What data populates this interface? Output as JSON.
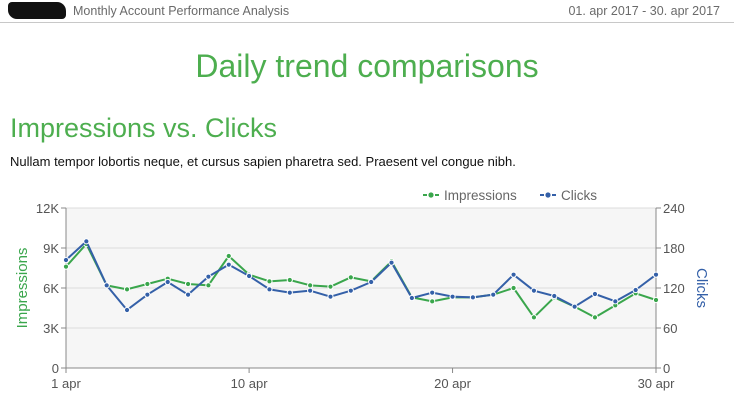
{
  "header": {
    "title": "Monthly Account Performance Analysis",
    "date_range": "01. apr 2017 - 30. apr 2017"
  },
  "page_title": "Daily trend comparisons",
  "section": {
    "title": "Impressions vs. Clicks",
    "description": "Nullam tempor lobortis neque, et cursus sapien pharetra sed. Praesent vel congue nibh."
  },
  "colors": {
    "impressions": "#3aa64c",
    "clicks": "#3460a8",
    "plot_bg": "#f6f6f6",
    "grid": "#dcdcdc"
  },
  "chart_data": {
    "type": "line",
    "x": [
      1,
      2,
      3,
      4,
      5,
      6,
      7,
      8,
      9,
      10,
      11,
      12,
      13,
      14,
      15,
      16,
      17,
      18,
      19,
      20,
      21,
      22,
      23,
      24,
      25,
      26,
      27,
      28,
      29,
      30
    ],
    "x_ticks": [
      1,
      10,
      20,
      30
    ],
    "x_tick_labels": [
      "1 apr",
      "10 apr",
      "20 apr",
      "30 apr"
    ],
    "series": [
      {
        "name": "Impressions",
        "axis": "left",
        "ylabel": "Impressions",
        "ylim": [
          0,
          12000
        ],
        "y_ticks": [
          0,
          3000,
          6000,
          9000,
          12000
        ],
        "y_tick_labels": [
          "0",
          "3K",
          "6K",
          "9K",
          "12K"
        ],
        "values": [
          7600,
          9300,
          6200,
          5900,
          6300,
          6700,
          6300,
          6200,
          8400,
          7000,
          6500,
          6600,
          6200,
          6100,
          6800,
          6500,
          8000,
          5300,
          5000,
          5300,
          5300,
          5500,
          6000,
          3800,
          5300,
          4600,
          3800,
          4700,
          5600,
          5100
        ]
      },
      {
        "name": "Clicks",
        "axis": "right",
        "ylabel": "Clicks",
        "ylim": [
          0,
          240
        ],
        "y_ticks": [
          0,
          60,
          120,
          180,
          240
        ],
        "y_tick_labels": [
          "0",
          "60",
          "120",
          "180",
          "240"
        ],
        "values": [
          162,
          190,
          124,
          87,
          110,
          129,
          110,
          137,
          155,
          138,
          118,
          113,
          116,
          107,
          116,
          129,
          158,
          105,
          113,
          107,
          106,
          110,
          140,
          116,
          108,
          92,
          111,
          100,
          117,
          140
        ]
      }
    ],
    "legend_position": "top-right",
    "grid": true
  }
}
